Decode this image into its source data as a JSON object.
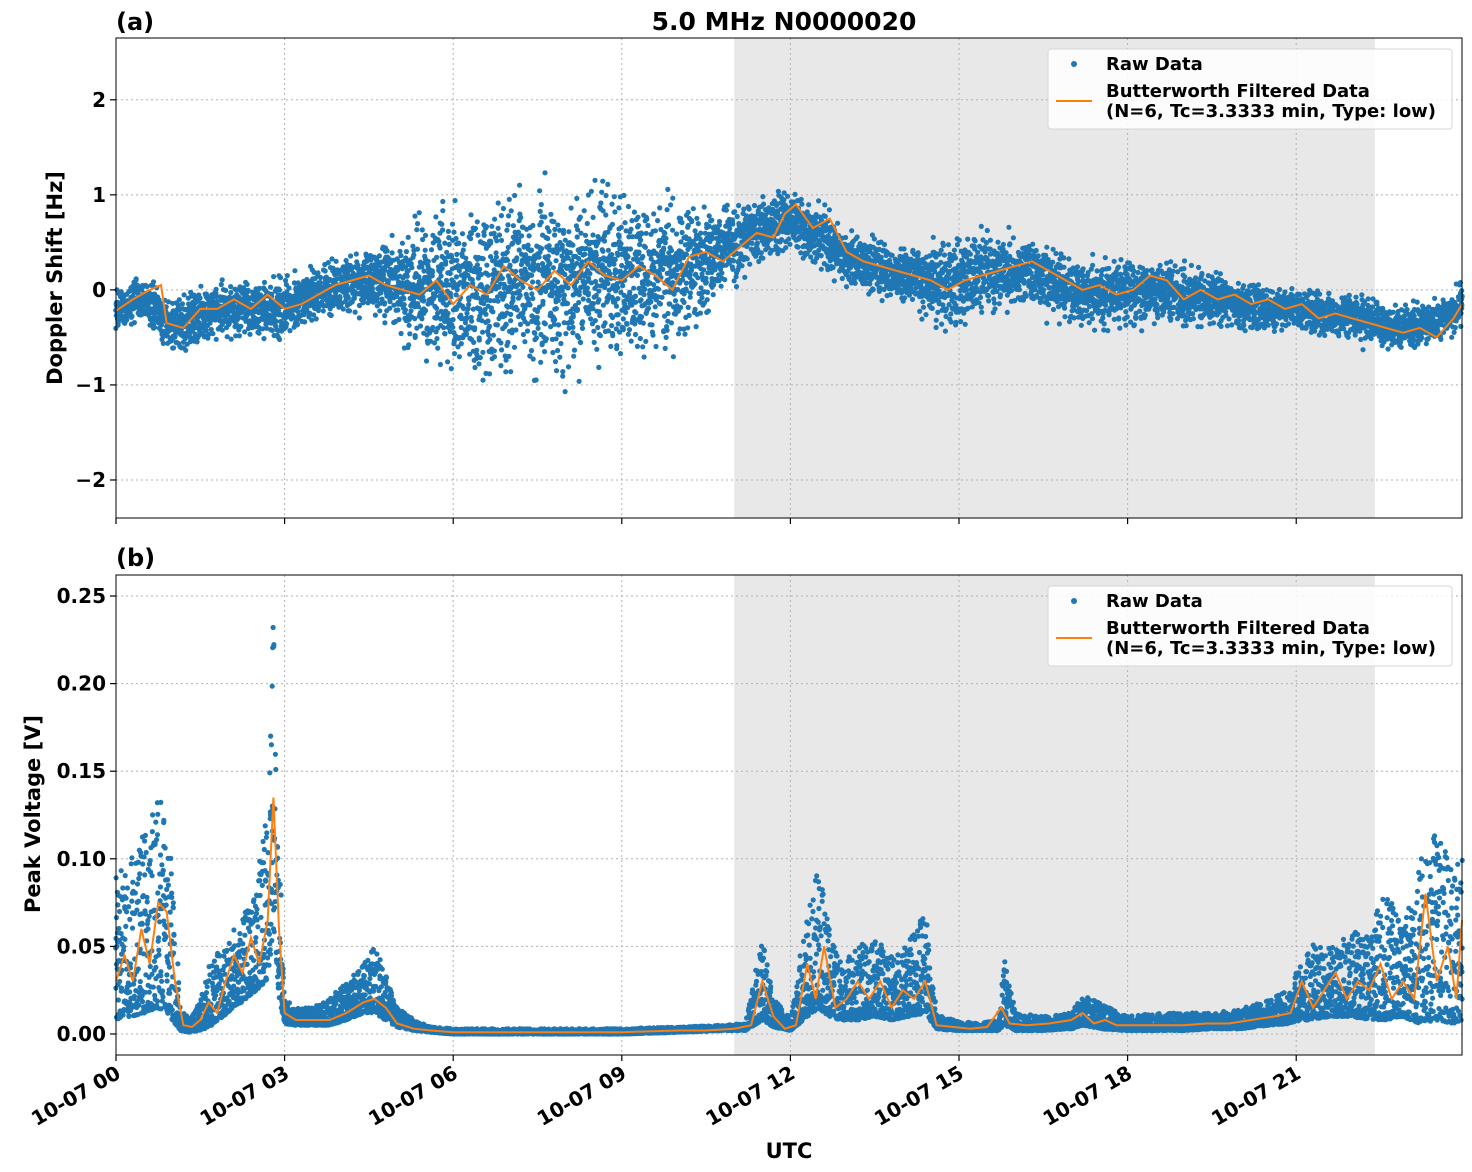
{
  "figure": {
    "title": "5.0 MHz N0000020",
    "xlabel": "UTC"
  },
  "colors": {
    "raw": "#1f77b4",
    "filtered": "#ff7f0e",
    "night_shade": "#e8e8e8",
    "grid": "#b0b0b0"
  },
  "chart_data": [
    {
      "type": "scatter",
      "panel_label": "(a)",
      "ylabel": "Doppler Shift [Hz]",
      "xlim_hours": [
        0,
        23.95
      ],
      "ylim": [
        -2.4,
        2.65
      ],
      "xticks_hours": [
        0,
        3,
        6,
        9,
        12,
        15,
        18,
        21
      ],
      "xtick_labels": [
        "10-07 00",
        "10-07 03",
        "10-07 06",
        "10-07 09",
        "10-07 12",
        "10-07 15",
        "10-07 18",
        "10-07 21"
      ],
      "yticks": [
        -2,
        -1,
        0,
        1,
        2
      ],
      "ytick_labels": [
        "−2",
        "−1",
        "0",
        "1",
        "2"
      ],
      "grid": true,
      "shaded_span_hours": [
        11.0,
        22.4
      ],
      "legend": {
        "placement": "upper right",
        "entries": [
          "Raw Data",
          "Butterworth Filtered Data",
          "(N=6, Tc=3.3333 min, Type: low)"
        ]
      },
      "series": [
        {
          "name": "Raw Data",
          "kind": "scatter-envelope",
          "x_hours": [
            0,
            0.5,
            1,
            1.5,
            2,
            2.5,
            3,
            3.5,
            4,
            4.5,
            5,
            5.5,
            6,
            6.5,
            7,
            7.5,
            8,
            8.5,
            9,
            9.5,
            10,
            10.5,
            11,
            11.5,
            12,
            12.5,
            13,
            13.5,
            14,
            14.5,
            15,
            15.5,
            16,
            16.5,
            17,
            17.5,
            18,
            18.5,
            19,
            19.5,
            20,
            20.5,
            21,
            21.5,
            22,
            22.5,
            23,
            23.5,
            23.95
          ],
          "center": [
            -0.2,
            -0.1,
            -0.4,
            -0.25,
            -0.2,
            -0.2,
            -0.2,
            -0.05,
            0.05,
            0.1,
            0.05,
            0.0,
            -0.05,
            0.0,
            0.1,
            0.05,
            0.1,
            0.15,
            0.1,
            0.15,
            0.2,
            0.3,
            0.5,
            0.65,
            0.75,
            0.55,
            0.35,
            0.25,
            0.15,
            0.1,
            0.1,
            0.15,
            0.2,
            0.15,
            0.0,
            -0.05,
            0.0,
            0.0,
            -0.05,
            -0.1,
            -0.15,
            -0.2,
            -0.2,
            -0.25,
            -0.3,
            -0.35,
            -0.4,
            -0.35,
            -0.15
          ],
          "spread": [
            0.25,
            0.25,
            0.3,
            0.35,
            0.3,
            0.35,
            0.35,
            0.3,
            0.35,
            0.35,
            0.5,
            0.8,
            0.9,
            1.0,
            1.0,
            1.05,
            1.05,
            1.0,
            0.95,
            0.9,
            0.8,
            0.6,
            0.45,
            0.35,
            0.35,
            0.35,
            0.35,
            0.3,
            0.3,
            0.45,
            0.55,
            0.45,
            0.4,
            0.4,
            0.4,
            0.4,
            0.4,
            0.35,
            0.35,
            0.3,
            0.3,
            0.3,
            0.25,
            0.25,
            0.25,
            0.25,
            0.25,
            0.25,
            0.25
          ]
        },
        {
          "name": "Butterworth Filtered Data",
          "kind": "line",
          "x_hours": [
            0,
            0.3,
            0.6,
            0.8,
            0.9,
            1.2,
            1.5,
            1.8,
            2.1,
            2.4,
            2.7,
            3.0,
            3.3,
            3.6,
            3.9,
            4.2,
            4.5,
            4.8,
            5.1,
            5.4,
            5.7,
            6.0,
            6.3,
            6.6,
            6.9,
            7.2,
            7.5,
            7.8,
            8.1,
            8.4,
            8.7,
            9.0,
            9.3,
            9.6,
            9.9,
            10.2,
            10.5,
            10.8,
            11.1,
            11.4,
            11.7,
            11.9,
            12.1,
            12.4,
            12.7,
            13.0,
            13.3,
            13.6,
            13.9,
            14.2,
            14.5,
            14.8,
            15.1,
            15.4,
            15.7,
            16.0,
            16.3,
            16.6,
            16.9,
            17.2,
            17.5,
            17.8,
            18.1,
            18.4,
            18.7,
            19.0,
            19.3,
            19.6,
            19.9,
            20.2,
            20.5,
            20.8,
            21.1,
            21.4,
            21.7,
            22.0,
            22.3,
            22.6,
            22.9,
            23.2,
            23.5,
            23.8,
            23.95
          ],
          "y": [
            -0.22,
            -0.1,
            0.0,
            0.05,
            -0.35,
            -0.4,
            -0.2,
            -0.2,
            -0.1,
            -0.2,
            -0.05,
            -0.2,
            -0.15,
            -0.05,
            0.05,
            0.1,
            0.15,
            0.05,
            0.0,
            -0.05,
            0.1,
            -0.15,
            0.05,
            -0.05,
            0.25,
            0.1,
            0.0,
            0.2,
            0.05,
            0.3,
            0.15,
            0.1,
            0.25,
            0.15,
            0.0,
            0.35,
            0.4,
            0.3,
            0.45,
            0.6,
            0.55,
            0.8,
            0.9,
            0.65,
            0.75,
            0.4,
            0.3,
            0.25,
            0.2,
            0.15,
            0.1,
            0.0,
            0.1,
            0.15,
            0.2,
            0.25,
            0.3,
            0.2,
            0.1,
            0.0,
            0.05,
            -0.05,
            0.0,
            0.15,
            0.1,
            -0.1,
            0.0,
            -0.1,
            -0.05,
            -0.15,
            -0.1,
            -0.2,
            -0.15,
            -0.3,
            -0.25,
            -0.3,
            -0.35,
            -0.4,
            -0.45,
            -0.4,
            -0.5,
            -0.3,
            -0.15
          ]
        }
      ]
    },
    {
      "type": "scatter",
      "panel_label": "(b)",
      "ylabel": "Peak Voltage [V]",
      "xlim_hours": [
        0,
        23.95
      ],
      "ylim": [
        -0.012,
        0.262
      ],
      "xticks_hours": [
        0,
        3,
        6,
        9,
        12,
        15,
        18,
        21
      ],
      "xtick_labels": [
        "10-07 00",
        "10-07 03",
        "10-07 06",
        "10-07 09",
        "10-07 12",
        "10-07 15",
        "10-07 18",
        "10-07 21"
      ],
      "yticks": [
        0.0,
        0.05,
        0.1,
        0.15,
        0.2,
        0.25
      ],
      "ytick_labels": [
        "0.00",
        "0.05",
        "0.10",
        "0.15",
        "0.20",
        "0.25"
      ],
      "grid": true,
      "shaded_span_hours": [
        11.0,
        22.4
      ],
      "legend": {
        "placement": "upper right",
        "entries": [
          "Raw Data",
          "Butterworth Filtered Data",
          "(N=6, Tc=3.3333 min, Type: low)"
        ]
      },
      "series": [
        {
          "name": "Raw Data",
          "kind": "scatter-envelope",
          "x_hours": [
            0,
            0.25,
            0.5,
            0.75,
            0.95,
            1.15,
            1.3,
            1.5,
            1.7,
            1.9,
            2.1,
            2.3,
            2.5,
            2.7,
            2.8,
            2.9,
            3.0,
            3.2,
            3.5,
            3.8,
            4.1,
            4.4,
            4.6,
            4.8,
            5.0,
            5.3,
            5.6,
            6.0,
            7.0,
            8.0,
            9.0,
            10.0,
            10.8,
            11.2,
            11.5,
            11.7,
            12.0,
            12.3,
            12.5,
            12.7,
            12.9,
            13.2,
            13.5,
            13.8,
            14.1,
            14.4,
            14.6,
            14.9,
            15.3,
            15.7,
            15.8,
            16.0,
            16.5,
            17.0,
            17.2,
            17.5,
            18.0,
            18.5,
            19.0,
            19.5,
            20.0,
            20.5,
            20.9,
            21.2,
            21.6,
            22.0,
            22.3,
            22.6,
            22.9,
            23.2,
            23.5,
            23.8,
            23.95
          ],
          "low": [
            0.008,
            0.01,
            0.012,
            0.015,
            0.01,
            0.002,
            0.001,
            0.002,
            0.005,
            0.01,
            0.015,
            0.02,
            0.025,
            0.03,
            0.06,
            0.02,
            0.006,
            0.005,
            0.005,
            0.005,
            0.008,
            0.012,
            0.012,
            0.008,
            0.004,
            0.002,
            0.001,
            0.0,
            0.0,
            0.0,
            0.0,
            0.001,
            0.002,
            0.002,
            0.008,
            0.004,
            0.002,
            0.01,
            0.015,
            0.01,
            0.008,
            0.008,
            0.01,
            0.008,
            0.01,
            0.012,
            0.003,
            0.002,
            0.002,
            0.002,
            0.005,
            0.002,
            0.002,
            0.003,
            0.005,
            0.003,
            0.002,
            0.002,
            0.002,
            0.003,
            0.003,
            0.005,
            0.006,
            0.008,
            0.01,
            0.01,
            0.008,
            0.008,
            0.01,
            0.006,
            0.008,
            0.006,
            0.008
          ],
          "high": [
            0.09,
            0.1,
            0.12,
            0.14,
            0.12,
            0.015,
            0.008,
            0.02,
            0.045,
            0.05,
            0.06,
            0.07,
            0.08,
            0.14,
            0.24,
            0.12,
            0.02,
            0.015,
            0.015,
            0.02,
            0.03,
            0.04,
            0.05,
            0.035,
            0.015,
            0.008,
            0.004,
            0.003,
            0.003,
            0.003,
            0.003,
            0.004,
            0.005,
            0.006,
            0.055,
            0.02,
            0.01,
            0.07,
            0.1,
            0.06,
            0.04,
            0.05,
            0.055,
            0.045,
            0.055,
            0.07,
            0.012,
            0.008,
            0.006,
            0.008,
            0.045,
            0.012,
            0.01,
            0.012,
            0.022,
            0.018,
            0.01,
            0.012,
            0.012,
            0.012,
            0.014,
            0.02,
            0.025,
            0.055,
            0.05,
            0.06,
            0.055,
            0.09,
            0.06,
            0.1,
            0.12,
            0.09,
            0.11
          ]
        },
        {
          "name": "Butterworth Filtered Data",
          "kind": "line",
          "x_hours": [
            0,
            0.15,
            0.3,
            0.45,
            0.6,
            0.75,
            0.9,
            1.05,
            1.2,
            1.35,
            1.5,
            1.65,
            1.8,
            1.95,
            2.1,
            2.25,
            2.4,
            2.55,
            2.7,
            2.8,
            2.9,
            3.0,
            3.2,
            3.5,
            3.8,
            4.1,
            4.4,
            4.6,
            4.8,
            5.0,
            5.3,
            5.6,
            6.0,
            7.0,
            8.0,
            9.0,
            10.0,
            10.5,
            11.0,
            11.3,
            11.5,
            11.7,
            11.9,
            12.1,
            12.3,
            12.45,
            12.6,
            12.8,
            13.0,
            13.2,
            13.4,
            13.6,
            13.8,
            14.0,
            14.2,
            14.4,
            14.6,
            14.9,
            15.2,
            15.5,
            15.75,
            15.9,
            16.2,
            16.6,
            17.0,
            17.2,
            17.4,
            17.6,
            17.8,
            18.2,
            18.6,
            19.0,
            19.4,
            19.8,
            20.2,
            20.6,
            20.9,
            21.1,
            21.3,
            21.5,
            21.7,
            21.9,
            22.1,
            22.3,
            22.5,
            22.7,
            22.9,
            23.1,
            23.3,
            23.5,
            23.7,
            23.85,
            23.95
          ],
          "y": [
            0.03,
            0.045,
            0.03,
            0.06,
            0.04,
            0.075,
            0.07,
            0.03,
            0.005,
            0.004,
            0.008,
            0.018,
            0.012,
            0.03,
            0.045,
            0.035,
            0.055,
            0.04,
            0.065,
            0.135,
            0.06,
            0.012,
            0.008,
            0.008,
            0.008,
            0.012,
            0.018,
            0.02,
            0.015,
            0.006,
            0.003,
            0.002,
            0.001,
            0.001,
            0.001,
            0.001,
            0.002,
            0.002,
            0.003,
            0.005,
            0.03,
            0.01,
            0.003,
            0.005,
            0.04,
            0.02,
            0.05,
            0.015,
            0.02,
            0.03,
            0.02,
            0.03,
            0.015,
            0.025,
            0.02,
            0.03,
            0.005,
            0.004,
            0.003,
            0.004,
            0.015,
            0.006,
            0.005,
            0.006,
            0.008,
            0.012,
            0.006,
            0.008,
            0.005,
            0.005,
            0.005,
            0.005,
            0.006,
            0.006,
            0.008,
            0.01,
            0.012,
            0.03,
            0.015,
            0.025,
            0.035,
            0.02,
            0.03,
            0.025,
            0.04,
            0.02,
            0.03,
            0.02,
            0.08,
            0.03,
            0.05,
            0.02,
            0.065
          ]
        }
      ]
    }
  ]
}
